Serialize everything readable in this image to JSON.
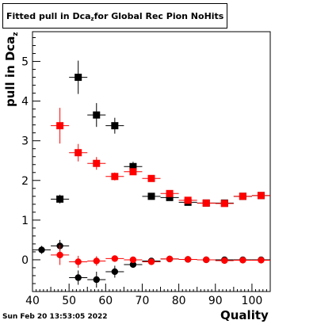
{
  "title": {
    "main": "Fitted pull in Dca",
    "sub": "z",
    "rest": " for Global Rec Pion NoHits"
  },
  "footer": "Sun Feb 20 13:53:05 2022",
  "chart_data": {
    "type": "scatter",
    "xlabel": "Quality",
    "ylabel": {
      "main": "pull in Dca",
      "sub": "z"
    },
    "xlim": [
      40,
      105
    ],
    "ylim": [
      -0.8,
      5.75
    ],
    "xticks": [
      40,
      50,
      60,
      70,
      80,
      90,
      100
    ],
    "yticks": [
      0,
      1,
      2,
      3,
      4,
      5
    ],
    "x_errors": 2.5,
    "colors": {
      "black": "#000000",
      "red": "#ff0000"
    },
    "series": [
      {
        "color": "black",
        "marker": "square",
        "points": [
          {
            "x": 47.5,
            "y": 1.53,
            "err": 0.11
          },
          {
            "x": 52.5,
            "y": 4.6,
            "err": 0.42
          },
          {
            "x": 57.5,
            "y": 3.65,
            "err": 0.3
          },
          {
            "x": 62.5,
            "y": 3.38,
            "err": 0.2
          },
          {
            "x": 67.5,
            "y": 2.35,
            "err": 0.12
          },
          {
            "x": 72.5,
            "y": 1.6,
            "err": 0.08
          },
          {
            "x": 77.5,
            "y": 1.57,
            "err": 0.06
          },
          {
            "x": 82.5,
            "y": 1.45,
            "err": 0.05
          },
          {
            "x": 87.5,
            "y": 1.43,
            "err": 0.04
          },
          {
            "x": 92.5,
            "y": 1.43,
            "err": 0.04
          },
          {
            "x": 97.5,
            "y": 1.6,
            "err": 0.04
          },
          {
            "x": 102.5,
            "y": 1.62,
            "err": 0.04
          }
        ]
      },
      {
        "color": "red",
        "marker": "square",
        "points": [
          {
            "x": 47.5,
            "y": 3.38,
            "err": 0.45
          },
          {
            "x": 52.5,
            "y": 2.7,
            "err": 0.22
          },
          {
            "x": 57.5,
            "y": 2.43,
            "err": 0.16
          },
          {
            "x": 62.5,
            "y": 2.1,
            "err": 0.1
          },
          {
            "x": 67.5,
            "y": 2.22,
            "err": 0.08
          },
          {
            "x": 72.5,
            "y": 2.05,
            "err": 0.06
          },
          {
            "x": 77.5,
            "y": 1.67,
            "err": 0.05
          },
          {
            "x": 82.5,
            "y": 1.5,
            "err": 0.04
          },
          {
            "x": 87.5,
            "y": 1.43,
            "err": 0.04
          },
          {
            "x": 92.5,
            "y": 1.42,
            "err": 0.04
          },
          {
            "x": 97.5,
            "y": 1.6,
            "err": 0.04
          },
          {
            "x": 102.5,
            "y": 1.62,
            "err": 0.04
          }
        ]
      },
      {
        "color": "black",
        "marker": "circle",
        "points": [
          {
            "x": 42.5,
            "y": 0.25,
            "err": 0.1
          },
          {
            "x": 47.5,
            "y": 0.35,
            "err": 0.15
          },
          {
            "x": 52.5,
            "y": -0.45,
            "err": 0.18
          },
          {
            "x": 57.5,
            "y": -0.5,
            "err": 0.2
          },
          {
            "x": 62.5,
            "y": -0.3,
            "err": 0.15
          },
          {
            "x": 67.5,
            "y": -0.12,
            "err": 0.08
          },
          {
            "x": 72.5,
            "y": -0.03,
            "err": 0.05
          },
          {
            "x": 77.5,
            "y": 0.02,
            "err": 0.04
          },
          {
            "x": 82.5,
            "y": 0.01,
            "err": 0.03
          },
          {
            "x": 87.5,
            "y": 0.0,
            "err": 0.03
          },
          {
            "x": 92.5,
            "y": 0.0,
            "err": 0.03
          },
          {
            "x": 97.5,
            "y": 0.0,
            "err": 0.03
          },
          {
            "x": 102.5,
            "y": 0.0,
            "err": 0.03
          }
        ]
      },
      {
        "color": "red",
        "marker": "circle",
        "points": [
          {
            "x": 47.5,
            "y": 0.12,
            "err": 0.25
          },
          {
            "x": 52.5,
            "y": -0.05,
            "err": 0.15
          },
          {
            "x": 57.5,
            "y": -0.03,
            "err": 0.12
          },
          {
            "x": 62.5,
            "y": 0.03,
            "err": 0.06
          },
          {
            "x": 67.5,
            "y": 0.0,
            "err": 0.05
          },
          {
            "x": 72.5,
            "y": -0.05,
            "err": 0.04
          },
          {
            "x": 77.5,
            "y": 0.02,
            "err": 0.04
          },
          {
            "x": 82.5,
            "y": 0.01,
            "err": 0.03
          },
          {
            "x": 87.5,
            "y": 0.0,
            "err": 0.03
          },
          {
            "x": 92.5,
            "y": -0.02,
            "err": 0.03
          },
          {
            "x": 97.5,
            "y": -0.01,
            "err": 0.03
          },
          {
            "x": 102.5,
            "y": -0.01,
            "err": 0.03
          }
        ]
      }
    ]
  }
}
